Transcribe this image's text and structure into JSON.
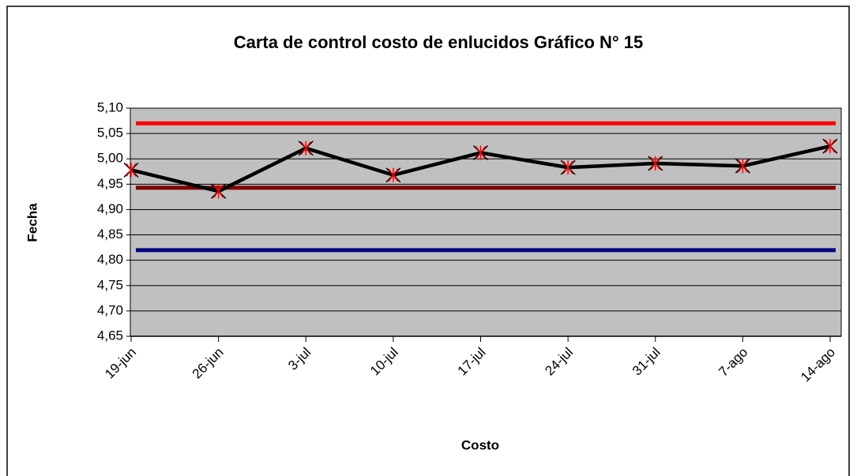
{
  "chart_data": {
    "type": "line",
    "title": "Carta de control costo de enlucidos Gráfico N° 15",
    "x_label": "Costo",
    "y_label": "Fecha",
    "categories": [
      "19-jun",
      "26-jun",
      "3-jul",
      "10-jul",
      "17-jul",
      "24-jul",
      "31-jul",
      "7-ago",
      "14-ago"
    ],
    "series": [
      {
        "color": "#000000",
        "marker_color": "#ff0000",
        "values": [
          4.978,
          4.936,
          5.021,
          4.968,
          5.012,
          4.983,
          4.991,
          4.986,
          5.025
        ]
      },
      {
        "color": "#ff0000",
        "values": [
          5.07,
          5.07,
          5.07,
          5.07,
          5.07,
          5.07,
          5.07,
          5.07,
          5.07
        ]
      },
      {
        "color": "#800000",
        "values": [
          4.943,
          4.943,
          4.943,
          4.943,
          4.943,
          4.943,
          4.943,
          4.943,
          4.943
        ]
      },
      {
        "color": "#000080",
        "values": [
          4.82,
          4.82,
          4.82,
          4.82,
          4.82,
          4.82,
          4.82,
          4.82,
          4.82
        ]
      }
    ],
    "ylim": [
      4.65,
      5.1
    ],
    "yticks": [
      {
        "value": 4.65,
        "label": "4,65"
      },
      {
        "value": 4.7,
        "label": "4,70"
      },
      {
        "value": 4.75,
        "label": "4,75"
      },
      {
        "value": 4.8,
        "label": "4,80"
      },
      {
        "value": 4.85,
        "label": "4,85"
      },
      {
        "value": 4.9,
        "label": "4,90"
      },
      {
        "value": 4.95,
        "label": "4,95"
      },
      {
        "value": 5.0,
        "label": "5,00"
      },
      {
        "value": 5.05,
        "label": "5,05"
      },
      {
        "value": 5.1,
        "label": "5,10"
      }
    ],
    "grid": true,
    "plot_background": "#c0c0c0"
  }
}
